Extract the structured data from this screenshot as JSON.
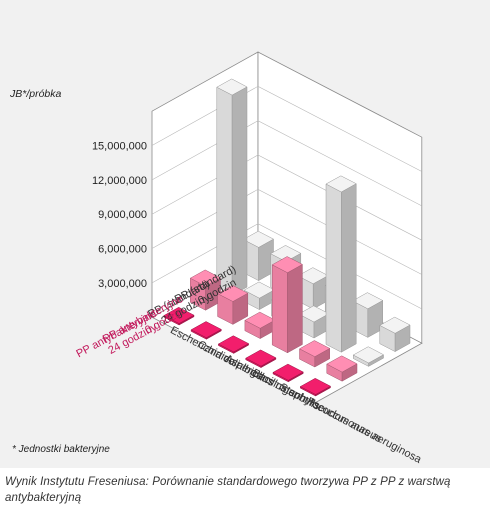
{
  "caption": "Wynik Instytutu Freseniusa: Porównanie standardowego tworzywa PP z PP z warstwą antybakteryjną",
  "chart_data": {
    "type": "bar",
    "ylabel": "JB*/próbka",
    "footnote": "* Jednostki bakteryjne",
    "yticks": [
      "3,000,000",
      "6,000,000",
      "9,000,000",
      "12,000,000",
      "15,000,000"
    ],
    "ylim": [
      0,
      18000000
    ],
    "categories": [
      "Escherichia coli",
      "Candida albicans",
      "Aspergillus niger",
      "Bacillus subtilis",
      "Staphylococcus aureus",
      "Pseudomonas aeruginosa"
    ],
    "series": [
      {
        "name": "PP (standard) 0 godzin",
        "color": "#d9d9d9",
        "values": [
          2900000,
          2900000,
          2200000,
          2600000,
          2500000,
          1600000
        ]
      },
      {
        "name": "PP (standard) 24 godziny",
        "color": "#d9d9d9",
        "values": [
          17500000,
          1000000,
          1400000,
          1400000,
          14000000,
          300000
        ]
      },
      {
        "name": "PP antybakteryjne 0 godzin",
        "color": "#e87fa0",
        "values": [
          2100000,
          2000000,
          900000,
          7000000,
          900000,
          800000
        ]
      },
      {
        "name": "PP antybakteryjne 24 godziny",
        "color": "#d81b60",
        "values": [
          100000,
          100000,
          100000,
          100000,
          100000,
          100000
        ]
      }
    ]
  }
}
